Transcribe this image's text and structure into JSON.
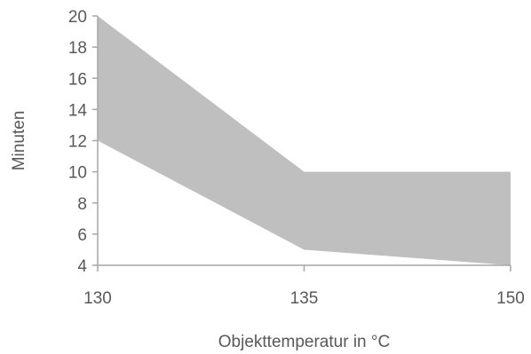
{
  "chart_data": {
    "type": "area",
    "x": [
      130,
      135,
      150
    ],
    "series": [
      {
        "role": "lower",
        "values": [
          12,
          5,
          4
        ]
      },
      {
        "role": "upper",
        "values": [
          20,
          10,
          10
        ]
      }
    ],
    "xlabel": "Objekttemperatur in °C",
    "ylabel": "Minuten",
    "xticks": [
      "130",
      "135",
      "150"
    ],
    "yticks": [
      "4",
      "6",
      "8",
      "10",
      "12",
      "14",
      "16",
      "18",
      "20"
    ],
    "ylim": [
      4,
      20
    ],
    "x_scale": "categorical-evenly-spaced",
    "grid": false,
    "legend": "none",
    "fill_color": "#bfbfbf",
    "axis_color": "#a6a6a6",
    "text_color": "#595959"
  }
}
